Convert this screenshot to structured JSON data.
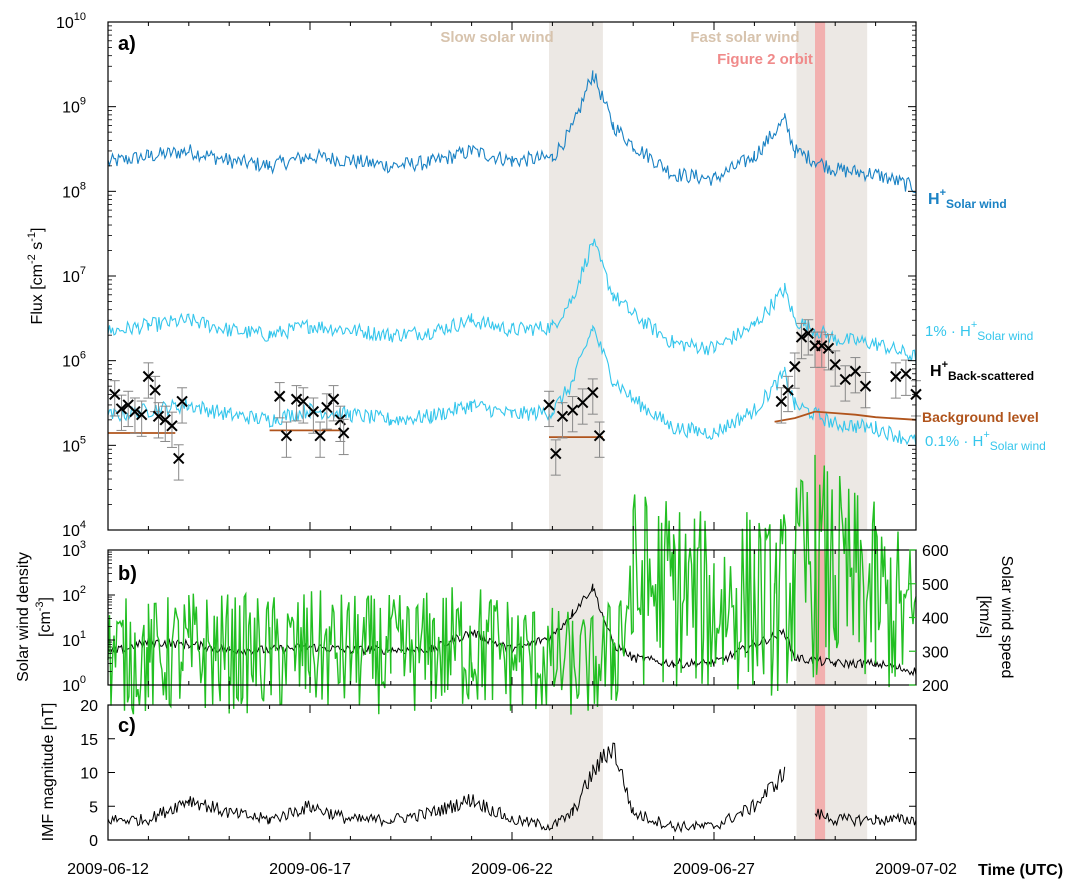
{
  "colors": {
    "sw_flux": "#1a82c4",
    "scaled": "#35c6ec",
    "backscatter": "#000000",
    "background": "#b0541c",
    "density": "#000000",
    "speed": "#22bf22",
    "imf": "#000000",
    "slow_band": "#ece8e4",
    "fast_band": "#ece8e4",
    "orbit_band": "#f3a6a6",
    "slow_label": "#d7c3ad",
    "orbit_label": "#f08a8a"
  },
  "chart_data": [
    {
      "type": "line",
      "panel_label": "a)",
      "ylabel": "Flux [cm-2 s-1]",
      "ylabel_parts": {
        "main": "Flux [cm",
        "sup1": "-2",
        "mid": " s",
        "sup2": "-1",
        "end": "]"
      },
      "yscale": "log",
      "ylim": [
        10000,
        10000000000
      ],
      "ytick_labels": [
        {
          "base": "10",
          "exp": "4",
          "value": 10000
        },
        {
          "base": "10",
          "exp": "5",
          "value": 100000
        },
        {
          "base": "10",
          "exp": "6",
          "value": 1000000
        },
        {
          "base": "10",
          "exp": "7",
          "value": 10000000
        },
        {
          "base": "10",
          "exp": "8",
          "value": 100000000
        },
        {
          "base": "10",
          "exp": "9",
          "value": 1000000000
        },
        {
          "base": "10",
          "exp": "10",
          "value": 10000000000
        }
      ],
      "xlim": [
        "2009-06-12",
        "2009-07-02"
      ],
      "shaded_regions": [
        {
          "label": "Slow solar wind",
          "start": "2009-06-22 22:00",
          "end": "2009-06-24 06:00"
        },
        {
          "label": "Fast solar wind",
          "start": "2009-06-29 01:00",
          "end": "2009-06-30 19:00"
        },
        {
          "label": "Figure 2 orbit",
          "start": "2009-06-29 12:00",
          "end": "2009-06-29 18:00"
        }
      ],
      "series": [
        {
          "name": "H+ Solar wind",
          "label": {
            "main": "H",
            "sup": "+",
            "sub": "Solar wind"
          },
          "x": [
            "2009-06-12",
            "2009-06-13",
            "2009-06-14",
            "2009-06-15",
            "2009-06-16",
            "2009-06-17",
            "2009-06-18",
            "2009-06-19",
            "2009-06-20",
            "2009-06-21",
            "2009-06-22",
            "2009-06-23",
            "2009-06-23 12:00",
            "2009-06-24",
            "2009-06-24 12:00",
            "2009-06-25",
            "2009-06-26",
            "2009-06-27",
            "2009-06-28",
            "2009-06-28 18:00",
            "2009-06-29",
            "2009-06-30",
            "2009-07-01",
            "2009-07-02"
          ],
          "y": [
            220000000,
            260000000,
            300000000,
            230000000,
            200000000,
            260000000,
            230000000,
            200000000,
            220000000,
            300000000,
            230000000,
            250000000,
            550000000,
            2500000000,
            600000000,
            350000000,
            160000000,
            140000000,
            260000000,
            700000000,
            300000000,
            180000000,
            160000000,
            110000000
          ]
        },
        {
          "name": "1% · H+ Solar wind",
          "label": {
            "main": "1% · H",
            "sup": "+",
            "sub": "Solar wind"
          },
          "x": [
            "2009-06-12",
            "2009-06-13",
            "2009-06-14",
            "2009-06-15",
            "2009-06-16",
            "2009-06-17",
            "2009-06-18",
            "2009-06-19",
            "2009-06-20",
            "2009-06-21",
            "2009-06-22",
            "2009-06-23",
            "2009-06-23 12:00",
            "2009-06-24",
            "2009-06-24 12:00",
            "2009-06-25",
            "2009-06-26",
            "2009-06-27",
            "2009-06-28",
            "2009-06-28 18:00",
            "2009-06-29",
            "2009-06-30",
            "2009-07-01",
            "2009-07-02"
          ],
          "y": [
            2200000,
            2600000,
            3000000,
            2300000,
            2000000,
            2600000,
            2300000,
            2000000,
            2200000,
            3000000,
            2300000,
            2500000,
            5500000,
            25000000,
            6000000,
            3500000,
            1600000,
            1400000,
            2600000,
            7000000,
            3000000,
            1800000,
            1600000,
            1100000
          ]
        },
        {
          "name": "0.1% · H+ Solar wind",
          "label": {
            "main": "0.1% · H",
            "sup": "+",
            "sub": "Solar wind"
          },
          "x": [
            "2009-06-12",
            "2009-06-13",
            "2009-06-14",
            "2009-06-15",
            "2009-06-16",
            "2009-06-17",
            "2009-06-18",
            "2009-06-19",
            "2009-06-20",
            "2009-06-21",
            "2009-06-22",
            "2009-06-23",
            "2009-06-23 12:00",
            "2009-06-24",
            "2009-06-24 12:00",
            "2009-06-25",
            "2009-06-26",
            "2009-06-27",
            "2009-06-28",
            "2009-06-28 18:00",
            "2009-06-29",
            "2009-06-30",
            "2009-07-01",
            "2009-07-02"
          ],
          "y": [
            220000,
            260000,
            300000,
            230000,
            200000,
            260000,
            230000,
            200000,
            220000,
            300000,
            230000,
            250000,
            550000,
            2500000,
            600000,
            350000,
            160000,
            140000,
            260000,
            700000,
            300000,
            180000,
            160000,
            110000
          ]
        },
        {
          "name": "Background level",
          "label": {
            "main": "Background level"
          },
          "segments": [
            {
              "x": [
                "2009-06-12",
                "2009-06-13 16:00"
              ],
              "y": [
                140000,
                140000
              ]
            },
            {
              "x": [
                "2009-06-16",
                "2009-06-17 18:00"
              ],
              "y": [
                150000,
                150000
              ]
            },
            {
              "x": [
                "2009-06-22 22:00",
                "2009-06-24 06:00"
              ],
              "y": [
                125000,
                125000
              ]
            },
            {
              "x": [
                "2009-06-28 12:00",
                "2009-06-29 00:00",
                "2009-06-29 12:00",
                "2009-06-30",
                "2009-06-30 12:00",
                "2009-07-01",
                "2009-07-02"
              ],
              "y": [
                190000,
                210000,
                250000,
                240000,
                230000,
                215000,
                200000
              ]
            }
          ]
        },
        {
          "name": "H+ Back-scattered",
          "label": {
            "main": "H",
            "sup": "+",
            "sub": "Back-scattered"
          },
          "marker": "x",
          "x": [
            "2009-06-12 04:00",
            "2009-06-12 08:00",
            "2009-06-12 12:00",
            "2009-06-12 16:00",
            "2009-06-12 20:00",
            "2009-06-13 00:00",
            "2009-06-13 04:00",
            "2009-06-13 06:00",
            "2009-06-13 10:00",
            "2009-06-13 14:00",
            "2009-06-13 18:00",
            "2009-06-13 20:00",
            "2009-06-16 06:00",
            "2009-06-16 10:00",
            "2009-06-16 16:00",
            "2009-06-16 20:00",
            "2009-06-17 02:00",
            "2009-06-17 06:00",
            "2009-06-17 10:00",
            "2009-06-17 14:00",
            "2009-06-17 18:00",
            "2009-06-17 20:00",
            "2009-06-22 22:00",
            "2009-06-23 02:00",
            "2009-06-23 06:00",
            "2009-06-23 12:00",
            "2009-06-23 18:00",
            "2009-06-24 00:00",
            "2009-06-24 04:00",
            "2009-06-28 16:00",
            "2009-06-28 20:00",
            "2009-06-29 00:00",
            "2009-06-29 04:00",
            "2009-06-29 08:00",
            "2009-06-29 12:00",
            "2009-06-29 16:00",
            "2009-06-29 20:00",
            "2009-06-30 00:00",
            "2009-06-30 06:00",
            "2009-06-30 12:00",
            "2009-06-30 18:00",
            "2009-07-01 12:00",
            "2009-07-01 18:00",
            "2009-07-02 00:00"
          ],
          "y": [
            400000,
            270000,
            300000,
            250000,
            230000,
            650000,
            450000,
            220000,
            200000,
            170000,
            70000,
            330000,
            380000,
            130000,
            350000,
            330000,
            250000,
            130000,
            280000,
            350000,
            200000,
            140000,
            300000,
            80000,
            220000,
            260000,
            320000,
            420000,
            130000,
            330000,
            450000,
            850000,
            1900000,
            2100000,
            1500000,
            1500000,
            1400000,
            900000,
            600000,
            750000,
            500000,
            650000,
            700000,
            400000
          ]
        }
      ]
    },
    {
      "type": "line",
      "panel_label": "b)",
      "ylabel": "Solar wind density [cm-3]",
      "ylabel_lines": [
        "Solar wind density",
        "[cm"
      ],
      "ylabel_sup": "-3",
      "ylabel_end": "]",
      "yscale": "log",
      "ylim": [
        1,
        1000
      ],
      "ytick_labels": [
        {
          "base": "10",
          "exp": "0",
          "value": 1
        },
        {
          "base": "10",
          "exp": "1",
          "value": 10
        },
        {
          "base": "10",
          "exp": "2",
          "value": 100
        },
        {
          "base": "10",
          "exp": "3",
          "value": 1000
        }
      ],
      "y2label": "Solar wind speed [km/s]",
      "y2label_lines": [
        "Solar wind speed",
        "[km/s]"
      ],
      "y2lim": [
        200,
        600
      ],
      "y2ticks": [
        "200",
        "300",
        "400",
        "500",
        "600"
      ],
      "series": [
        {
          "name": "Solar wind density",
          "axis": "left",
          "x": [
            "2009-06-12",
            "2009-06-13",
            "2009-06-14",
            "2009-06-15",
            "2009-06-16",
            "2009-06-17",
            "2009-06-18",
            "2009-06-19",
            "2009-06-20",
            "2009-06-21",
            "2009-06-22",
            "2009-06-23",
            "2009-06-23 12:00",
            "2009-06-24",
            "2009-06-24 12:00",
            "2009-06-25",
            "2009-06-26",
            "2009-06-27",
            "2009-06-28",
            "2009-06-28 18:00",
            "2009-06-29",
            "2009-06-30",
            "2009-07-01",
            "2009-07-02"
          ],
          "y": [
            5,
            9,
            8,
            6,
            6,
            7,
            6,
            6,
            6,
            15,
            6,
            12,
            40,
            150,
            8,
            4,
            3,
            3,
            8,
            15,
            4,
            3,
            3,
            2
          ]
        },
        {
          "name": "Solar wind speed",
          "axis": "right",
          "x": [
            "2009-06-12",
            "2009-06-13",
            "2009-06-14",
            "2009-06-15",
            "2009-06-16",
            "2009-06-17",
            "2009-06-18",
            "2009-06-19",
            "2009-06-20",
            "2009-06-21",
            "2009-06-22",
            "2009-06-23",
            "2009-06-23 12:00",
            "2009-06-24",
            "2009-06-24 12:00",
            "2009-06-25",
            "2009-06-26",
            "2009-06-27",
            "2009-06-28",
            "2009-06-28 12:00",
            "2009-06-29",
            "2009-06-29 12:00",
            "2009-06-30",
            "2009-07-01",
            "2009-07-02"
          ],
          "y": [
            290,
            280,
            300,
            295,
            290,
            300,
            295,
            290,
            300,
            320,
            290,
            270,
            260,
            255,
            290,
            490,
            480,
            430,
            460,
            420,
            500,
            560,
            520,
            460,
            380
          ]
        }
      ]
    },
    {
      "type": "line",
      "panel_label": "c)",
      "ylabel": "IMF magnitude [nT]",
      "ylim": [
        0,
        20
      ],
      "yticks": [
        "0",
        "5",
        "10",
        "15",
        "20"
      ],
      "xtick_labels": [
        "2009-06-12",
        "2009-06-17",
        "2009-06-22",
        "2009-06-27",
        "2009-07-02"
      ],
      "xlabel": "Time (UTC)",
      "series": [
        {
          "name": "IMF magnitude",
          "x": [
            "2009-06-12",
            "2009-06-13",
            "2009-06-14",
            "2009-06-15",
            "2009-06-16",
            "2009-06-17",
            "2009-06-18",
            "2009-06-19",
            "2009-06-20",
            "2009-06-21",
            "2009-06-22",
            "2009-06-23",
            "2009-06-23 12:00",
            "2009-06-24",
            "2009-06-24 12:00",
            "2009-06-25",
            "2009-06-26",
            "2009-06-27",
            "2009-06-28",
            "2009-06-28 18:00",
            "2009-06-29",
            "2009-06-29 12:00",
            "2009-06-30",
            "2009-07-01",
            "2009-07-02"
          ],
          "y": [
            3,
            3,
            6,
            4,
            3,
            5,
            3,
            3,
            4,
            6,
            3,
            2,
            4,
            10,
            14,
            4,
            2,
            2,
            5,
            10,
            null,
            4,
            3,
            3,
            3
          ]
        }
      ]
    }
  ]
}
